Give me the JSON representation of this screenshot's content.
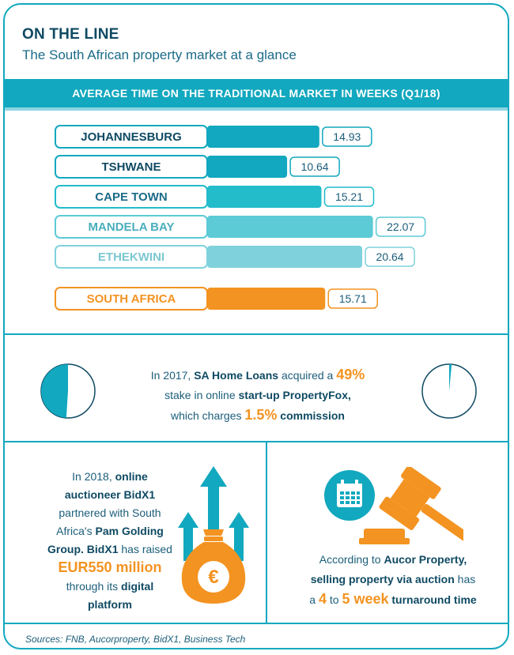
{
  "header": {
    "title": "ON THE LINE",
    "subtitle": "The South African property market at a glance"
  },
  "chart_data": {
    "type": "bar",
    "orientation": "horizontal",
    "title": "AVERAGE TIME ON THE TRADITIONAL MARKET IN WEEKS (Q1/18)",
    "categories": [
      "JOHANNESBURG",
      "TSHWANE",
      "CAPE TOWN",
      "MANDELA BAY",
      "ETHEKWINI",
      "SOUTH AFRICA"
    ],
    "values": [
      14.93,
      10.64,
      15.21,
      22.07,
      20.64,
      15.71
    ],
    "value_labels": [
      "14.93",
      "10.64",
      "15.21",
      "22.07",
      "20.64",
      "15.71"
    ],
    "colors": [
      "#12a8bf",
      "#12a8bf",
      "#22bccb",
      "#5ccbd5",
      "#7fd2dc",
      "#f39321"
    ],
    "label_colors": [
      "#0f4a63",
      "#0f4a63",
      "#1b6b88",
      "#4aaebc",
      "#7cc7d2",
      "#f39321"
    ]
  },
  "acquisition": {
    "text_1": "In 2017,",
    "company": "SA Home Loans",
    "text_2": "acquired a",
    "stake": "49%",
    "text_3": "stake in online",
    "target": "start-up PropertyFox,",
    "text_4": "which charges",
    "commission": "1.5%",
    "commission_label": "commission",
    "pie_left_value": 0.49,
    "pie_right_value": 0.015,
    "accent_color": "#12a8bf"
  },
  "bidx1": {
    "t1": "In 2018,",
    "t2": "online",
    "t3": "auctioneer BidX1",
    "t4": "partnered with South",
    "t5": "Africa's",
    "t6": "Pam Golding",
    "t7": "Group. BidX1",
    "t8": "has raised",
    "amount": "EUR550 million",
    "t9": "through its",
    "t10": "digital",
    "t11": "platform",
    "icon": "money-bag-euro-icon",
    "symbol": "€"
  },
  "aucor": {
    "t1": "According to",
    "company": "Aucor Property,",
    "t2": "selling property via",
    "t3": "auction",
    "t4": "has",
    "t5": "a",
    "n1": "4",
    "t6": "to",
    "n2": "5 week",
    "t7": "turnaround time",
    "icon": "auction-gavel-calendar-icon"
  },
  "footer": {
    "sources": "Sources: FNB, Aucorproperty, BidX1, Business Tech"
  }
}
